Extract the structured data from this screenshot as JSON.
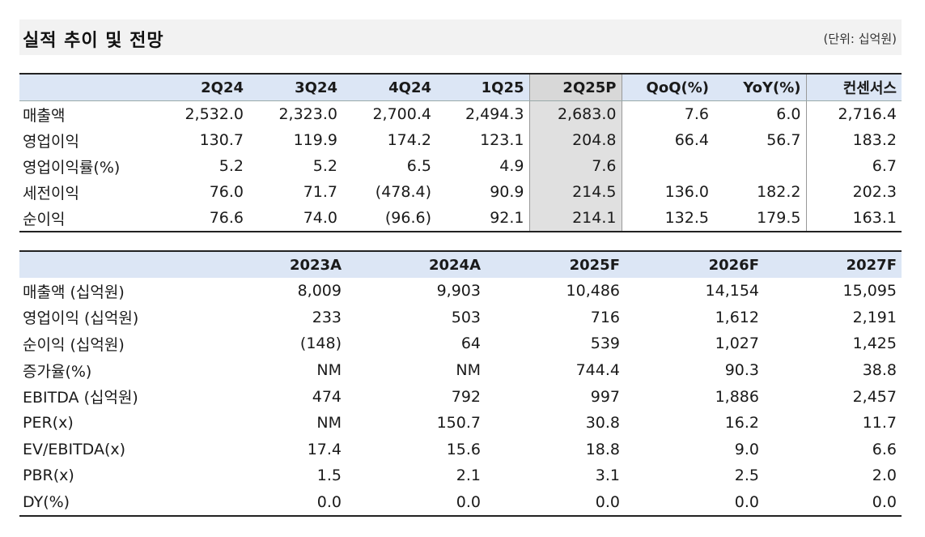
{
  "header": {
    "title": "실적 추이 및 전망",
    "unit": "(단위: 십억원)"
  },
  "quarterly": {
    "columns": [
      "2Q24",
      "3Q24",
      "4Q24",
      "1Q25",
      "2Q25P",
      "QoQ(%)",
      "YoY(%)",
      "컨센서스"
    ],
    "rows": [
      {
        "label": "매출액",
        "values": [
          "2,532.0",
          "2,323.0",
          "2,700.4",
          "2,494.3",
          "2,683.0",
          "7.6",
          "6.0",
          "2,716.4"
        ]
      },
      {
        "label": "영업이익",
        "values": [
          "130.7",
          "119.9",
          "174.2",
          "123.1",
          "204.8",
          "66.4",
          "56.7",
          "183.2"
        ]
      },
      {
        "label": "영업이익률(%)",
        "values": [
          "5.2",
          "5.2",
          "6.5",
          "4.9",
          "7.6",
          "",
          "",
          "6.7"
        ]
      },
      {
        "label": "세전이익",
        "values": [
          "76.0",
          "71.7",
          "(478.4)",
          "90.9",
          "214.5",
          "136.0",
          "182.2",
          "202.3"
        ]
      },
      {
        "label": "순이익",
        "values": [
          "76.6",
          "74.0",
          "(96.6)",
          "92.1",
          "214.1",
          "132.5",
          "179.5",
          "163.1"
        ]
      }
    ]
  },
  "annual": {
    "columns": [
      "2023A",
      "2024A",
      "2025F",
      "2026F",
      "2027F"
    ],
    "rows": [
      {
        "label": "매출액 (십억원)",
        "values": [
          "8,009",
          "9,903",
          "10,486",
          "14,154",
          "15,095"
        ]
      },
      {
        "label": "영업이익 (십억원)",
        "values": [
          "233",
          "503",
          "716",
          "1,612",
          "2,191"
        ]
      },
      {
        "label": "순이익 (십억원)",
        "values": [
          "(148)",
          "64",
          "539",
          "1,027",
          "1,425"
        ]
      },
      {
        "label": "증가율(%)",
        "values": [
          "NM",
          "NM",
          "744.4",
          "90.3",
          "38.8"
        ]
      },
      {
        "label": "EBITDA (십억원)",
        "values": [
          "474",
          "792",
          "997",
          "1,886",
          "2,457"
        ]
      },
      {
        "label": "PER(x)",
        "values": [
          "NM",
          "150.7",
          "30.8",
          "16.2",
          "11.7"
        ]
      },
      {
        "label": "EV/EBITDA(x)",
        "values": [
          "17.4",
          "15.6",
          "18.8",
          "9.0",
          "6.6"
        ]
      },
      {
        "label": "PBR(x)",
        "values": [
          "1.5",
          "2.1",
          "3.1",
          "2.5",
          "2.0"
        ]
      },
      {
        "label": "DY(%)",
        "values": [
          "0.0",
          "0.0",
          "0.0",
          "0.0",
          "0.0"
        ]
      }
    ]
  },
  "colors": {
    "header_bg": "#dce6f5",
    "highlight_bg": "#e0e0e0",
    "title_bg": "#f2f2f2"
  }
}
